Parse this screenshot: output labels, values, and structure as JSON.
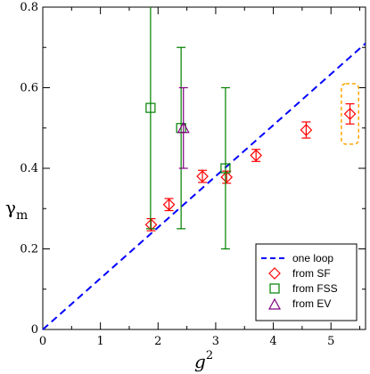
{
  "chart_data": {
    "type": "scatter",
    "xlabel": "g",
    "xlabel_sup": "2",
    "ylabel": "γ",
    "ylabel_sub": "m",
    "xlim": [
      0,
      5.6
    ],
    "ylim": [
      0,
      0.8
    ],
    "xticks": [
      0,
      1,
      2,
      3,
      4,
      5
    ],
    "yticks": [
      0,
      0.2,
      0.4,
      0.6,
      0.8
    ],
    "xtick_labels": [
      "0",
      "1",
      "2",
      "3",
      "4",
      "5"
    ],
    "ytick_labels": [
      "0",
      "0.2",
      "0.4",
      "0.6",
      "0.8"
    ],
    "grid": false,
    "legend_position": "bottom-right",
    "series": [
      {
        "name": "one loop",
        "kind": "line",
        "style": "dashed",
        "color": "#0000ff",
        "points": [
          [
            0,
            0
          ],
          [
            5.6,
            0.71
          ]
        ]
      },
      {
        "name": "from SF",
        "kind": "points",
        "marker": "diamond",
        "color": "#ff0000",
        "points": [
          {
            "x": 1.88,
            "y": 0.26,
            "err": 0.015
          },
          {
            "x": 2.19,
            "y": 0.31,
            "err": 0.015
          },
          {
            "x": 2.77,
            "y": 0.38,
            "err": 0.015
          },
          {
            "x": 3.19,
            "y": 0.378,
            "err": 0.015
          },
          {
            "x": 3.7,
            "y": 0.432,
            "err": 0.015
          },
          {
            "x": 4.57,
            "y": 0.495,
            "err": 0.02
          },
          {
            "x": 5.33,
            "y": 0.535,
            "err": 0.025
          }
        ]
      },
      {
        "name": "from FSS",
        "kind": "points",
        "marker": "square",
        "color": "#008000",
        "points": [
          {
            "x": 1.87,
            "y": 0.55,
            "lo": 0.25,
            "hi": 0.8
          },
          {
            "x": 2.4,
            "y": 0.5,
            "lo": 0.25,
            "hi": 0.7
          },
          {
            "x": 3.17,
            "y": 0.4,
            "lo": 0.2,
            "hi": 0.6
          }
        ]
      },
      {
        "name": "from EV",
        "kind": "points",
        "marker": "triangle",
        "color": "#800080",
        "points": [
          {
            "x": 2.44,
            "y": 0.5,
            "lo": 0.4,
            "hi": 0.6
          }
        ]
      }
    ],
    "annotations": [
      {
        "type": "highlight-box",
        "style": "dashed",
        "color": "#ffa500",
        "x": [
          5.18,
          5.48
        ],
        "y": [
          0.46,
          0.61
        ]
      }
    ]
  }
}
